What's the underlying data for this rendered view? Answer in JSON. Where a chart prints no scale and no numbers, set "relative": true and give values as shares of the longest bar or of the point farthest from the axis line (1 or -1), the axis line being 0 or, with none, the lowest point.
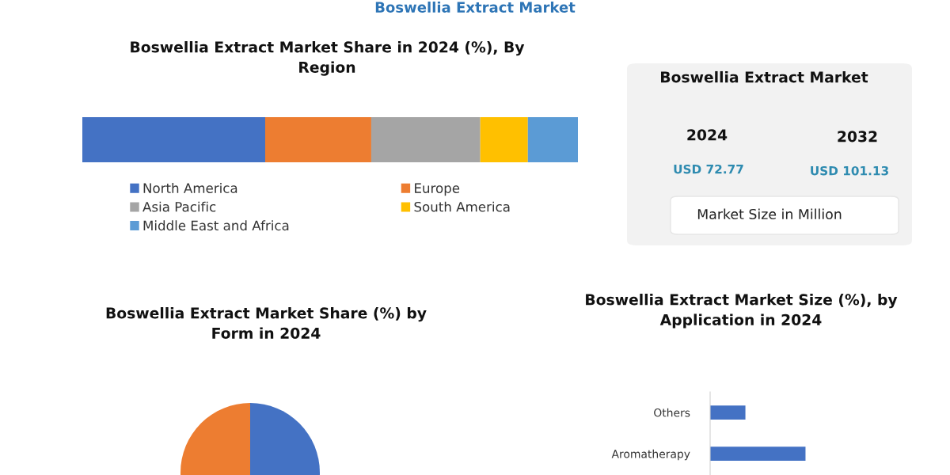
{
  "chart_data": [
    {
      "type": "other",
      "title": "Boswellia Extract Market",
      "annotations": [
        "Boswellia Extract Market",
        "2024",
        "2032",
        "USD 72.77",
        "USD 101.13",
        "Market Size in Million"
      ]
    },
    {
      "type": "bar",
      "title": "Boswellia Extract Market Share in 2024 (%), By Region",
      "orientation": "horizontal",
      "stacked": true,
      "relative": true,
      "categories": [
        null
      ],
      "legend": "bottom",
      "series": [
        {
          "name": "North America",
          "color": "#4472c4",
          "values": [
            0.369
          ]
        },
        {
          "name": "Europe",
          "color": "#ed7d31",
          "values": [
            0.214
          ]
        },
        {
          "name": "Asia Pacific",
          "color": "#a5a5a5",
          "values": [
            0.22
          ]
        },
        {
          "name": "South America",
          "color": "#ffc000",
          "values": [
            0.096
          ]
        },
        {
          "name": "Middle East and Africa",
          "color": "#5b9bd5",
          "values": [
            0.101
          ]
        }
      ]
    },
    {
      "type": "pie",
      "title": "Boswellia Extract Market Share (%) by Form in 2024",
      "categories": [
        null,
        null
      ],
      "values": [
        50,
        50
      ],
      "colors": [
        "#4472c4",
        "#ed7d31"
      ]
    },
    {
      "type": "bar",
      "title": "Boswellia Extract Market Size (%), by Application in 2024",
      "orientation": "horizontal",
      "relative": true,
      "categories": [
        "Others",
        "Aromatherapy"
      ],
      "values": [
        0.37,
        1
      ],
      "color": "#4472c4"
    }
  ]
}
